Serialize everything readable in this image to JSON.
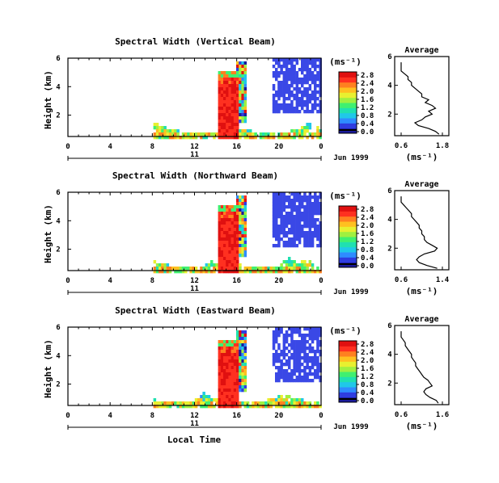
{
  "figure": {
    "xlabel": "Local Time",
    "ylabel": "Height (km)",
    "date_label": "Jun 1999",
    "day_label": "11",
    "unit_label": "(ms⁻¹)",
    "avg_title": "Average",
    "avg_xlabel": "(ms⁻¹)"
  },
  "colors": {
    "scale": [
      "#1a1a9a",
      "#2f3de0",
      "#2f8cff",
      "#20c8e8",
      "#20e0b0",
      "#40f070",
      "#a0f040",
      "#e8f030",
      "#ffc020",
      "#ff8020",
      "#ff3020",
      "#e01010"
    ],
    "bad_data": "#3a48e6"
  },
  "chart_data": [
    {
      "type": "heatmap",
      "title": "Spectral Width (Vertical Beam)",
      "x_ticks": [
        "0",
        "4",
        "8",
        "12",
        "16",
        "20",
        "0"
      ],
      "xlim": [
        0,
        24
      ],
      "y_ticks": [
        "2",
        "4",
        "6"
      ],
      "ylim": [
        0.5,
        6
      ],
      "colorbar_ticks": [
        "0.0",
        "0.4",
        "0.8",
        "1.2",
        "1.6",
        "2.0",
        "2.4",
        "2.8"
      ],
      "colorbar_range": [
        0,
        2.8
      ],
      "avg_x_ticks": [
        "0.6",
        "1.8"
      ],
      "avg_profile": {
        "heights": [
          0.6,
          0.8,
          1.0,
          1.2,
          1.4,
          1.6,
          1.8,
          2.0,
          2.2,
          2.4,
          2.6,
          2.8,
          3.0,
          3.2,
          3.4,
          3.6,
          3.8,
          4.0,
          4.2,
          4.4,
          4.6,
          4.8,
          5.0,
          5.2,
          5.4,
          5.6
        ],
        "values": [
          1.7,
          1.6,
          1.4,
          1.1,
          1.0,
          1.2,
          1.3,
          1.5,
          1.4,
          1.6,
          1.5,
          1.3,
          1.4,
          1.2,
          1.2,
          1.1,
          1.0,
          0.9,
          0.9,
          0.8,
          0.8,
          0.7,
          0.6,
          0.6,
          0.6,
          0.6
        ]
      }
    },
    {
      "type": "heatmap",
      "title": "Spectral Width (Northward Beam)",
      "x_ticks": [
        "0",
        "4",
        "8",
        "12",
        "16",
        "20",
        "0"
      ],
      "xlim": [
        0,
        24
      ],
      "y_ticks": [
        "2",
        "4",
        "6"
      ],
      "ylim": [
        0.5,
        6
      ],
      "colorbar_ticks": [
        "0.0",
        "0.4",
        "0.8",
        "1.2",
        "1.6",
        "2.0",
        "2.4",
        "2.8"
      ],
      "colorbar_range": [
        0,
        2.8
      ],
      "avg_x_ticks": [
        "0.6",
        "1.4"
      ],
      "avg_profile": {
        "heights": [
          0.6,
          0.8,
          1.0,
          1.2,
          1.4,
          1.6,
          1.8,
          2.0,
          2.2,
          2.4,
          2.6,
          2.8,
          3.0,
          3.2,
          3.4,
          3.6,
          3.8,
          4.0,
          4.2,
          4.4,
          4.6,
          4.8,
          5.0,
          5.2,
          5.4,
          5.6
        ],
        "values": [
          1.3,
          1.1,
          0.95,
          0.9,
          0.95,
          1.05,
          1.25,
          1.3,
          1.2,
          1.1,
          1.05,
          1.05,
          1.0,
          1.0,
          0.95,
          0.95,
          0.9,
          0.85,
          0.8,
          0.8,
          0.75,
          0.7,
          0.65,
          0.6,
          0.6,
          0.6
        ]
      }
    },
    {
      "type": "heatmap",
      "title": "Spectral Width (Eastward Beam)",
      "x_ticks": [
        "0",
        "4",
        "8",
        "12",
        "16",
        "20",
        "0"
      ],
      "xlim": [
        0,
        24
      ],
      "y_ticks": [
        "2",
        "4",
        "6"
      ],
      "ylim": [
        0.5,
        6
      ],
      "colorbar_ticks": [
        "0.0",
        "0.4",
        "0.8",
        "1.2",
        "1.6",
        "2.0",
        "2.4",
        "2.8"
      ],
      "colorbar_range": [
        0,
        2.8
      ],
      "avg_x_ticks": [
        "0.6",
        "1.6"
      ],
      "avg_profile": {
        "heights": [
          0.6,
          0.8,
          1.0,
          1.2,
          1.4,
          1.6,
          1.8,
          2.0,
          2.2,
          2.4,
          2.6,
          2.8,
          3.0,
          3.2,
          3.4,
          3.6,
          3.8,
          4.0,
          4.2,
          4.4,
          4.6,
          4.8,
          5.0,
          5.2,
          5.4,
          5.6
        ],
        "values": [
          1.5,
          1.45,
          1.3,
          1.2,
          1.15,
          1.2,
          1.35,
          1.3,
          1.25,
          1.15,
          1.1,
          1.05,
          1.0,
          0.95,
          0.95,
          0.9,
          0.85,
          0.85,
          0.8,
          0.75,
          0.7,
          0.7,
          0.65,
          0.6,
          0.6,
          0.6
        ]
      }
    }
  ]
}
